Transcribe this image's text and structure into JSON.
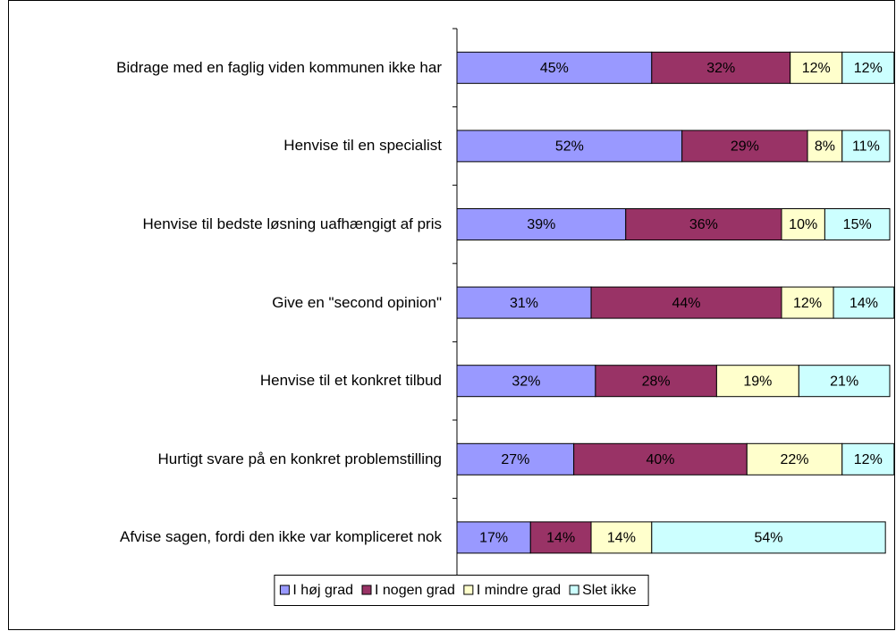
{
  "chart_data": {
    "type": "stacked_bar_horizontal",
    "categories": [
      "Bidrage med en faglig viden kommunen ikke har",
      "Henvise til en specialist",
      "Henvise til bedste løsning uafhængigt af pris",
      "Give en \"second opinion\"",
      "Henvise til et konkret tilbud",
      "Hurtigt svare på en konkret problemstilling",
      "Afvise sagen, fordi den ikke var kompliceret nok"
    ],
    "series": [
      {
        "name": "I høj grad",
        "color": "#9999ff",
        "values": [
          45,
          52,
          39,
          31,
          32,
          27,
          17
        ],
        "value_labels": [
          "45%",
          "52%",
          "39%",
          "31%",
          "32%",
          "27%",
          "17%"
        ]
      },
      {
        "name": "I nogen grad",
        "color": "#993366",
        "values": [
          32,
          29,
          36,
          44,
          28,
          40,
          14
        ],
        "value_labels": [
          "32%",
          "29%",
          "36%",
          "44%",
          "28%",
          "40%",
          "14%"
        ]
      },
      {
        "name": "I mindre grad",
        "color": "#ffffcc",
        "values": [
          12,
          8,
          10,
          12,
          19,
          22,
          14
        ],
        "value_labels": [
          "12%",
          "8%",
          "10%",
          "12%",
          "19%",
          "22%",
          "14%"
        ]
      },
      {
        "name": "Slet ikke",
        "color": "#ccffff",
        "values": [
          12,
          11,
          15,
          14,
          21,
          12,
          54
        ],
        "value_labels": [
          "12%",
          "11%",
          "15%",
          "14%",
          "21%",
          "12%",
          "54%"
        ]
      }
    ],
    "legend": "bottom"
  }
}
